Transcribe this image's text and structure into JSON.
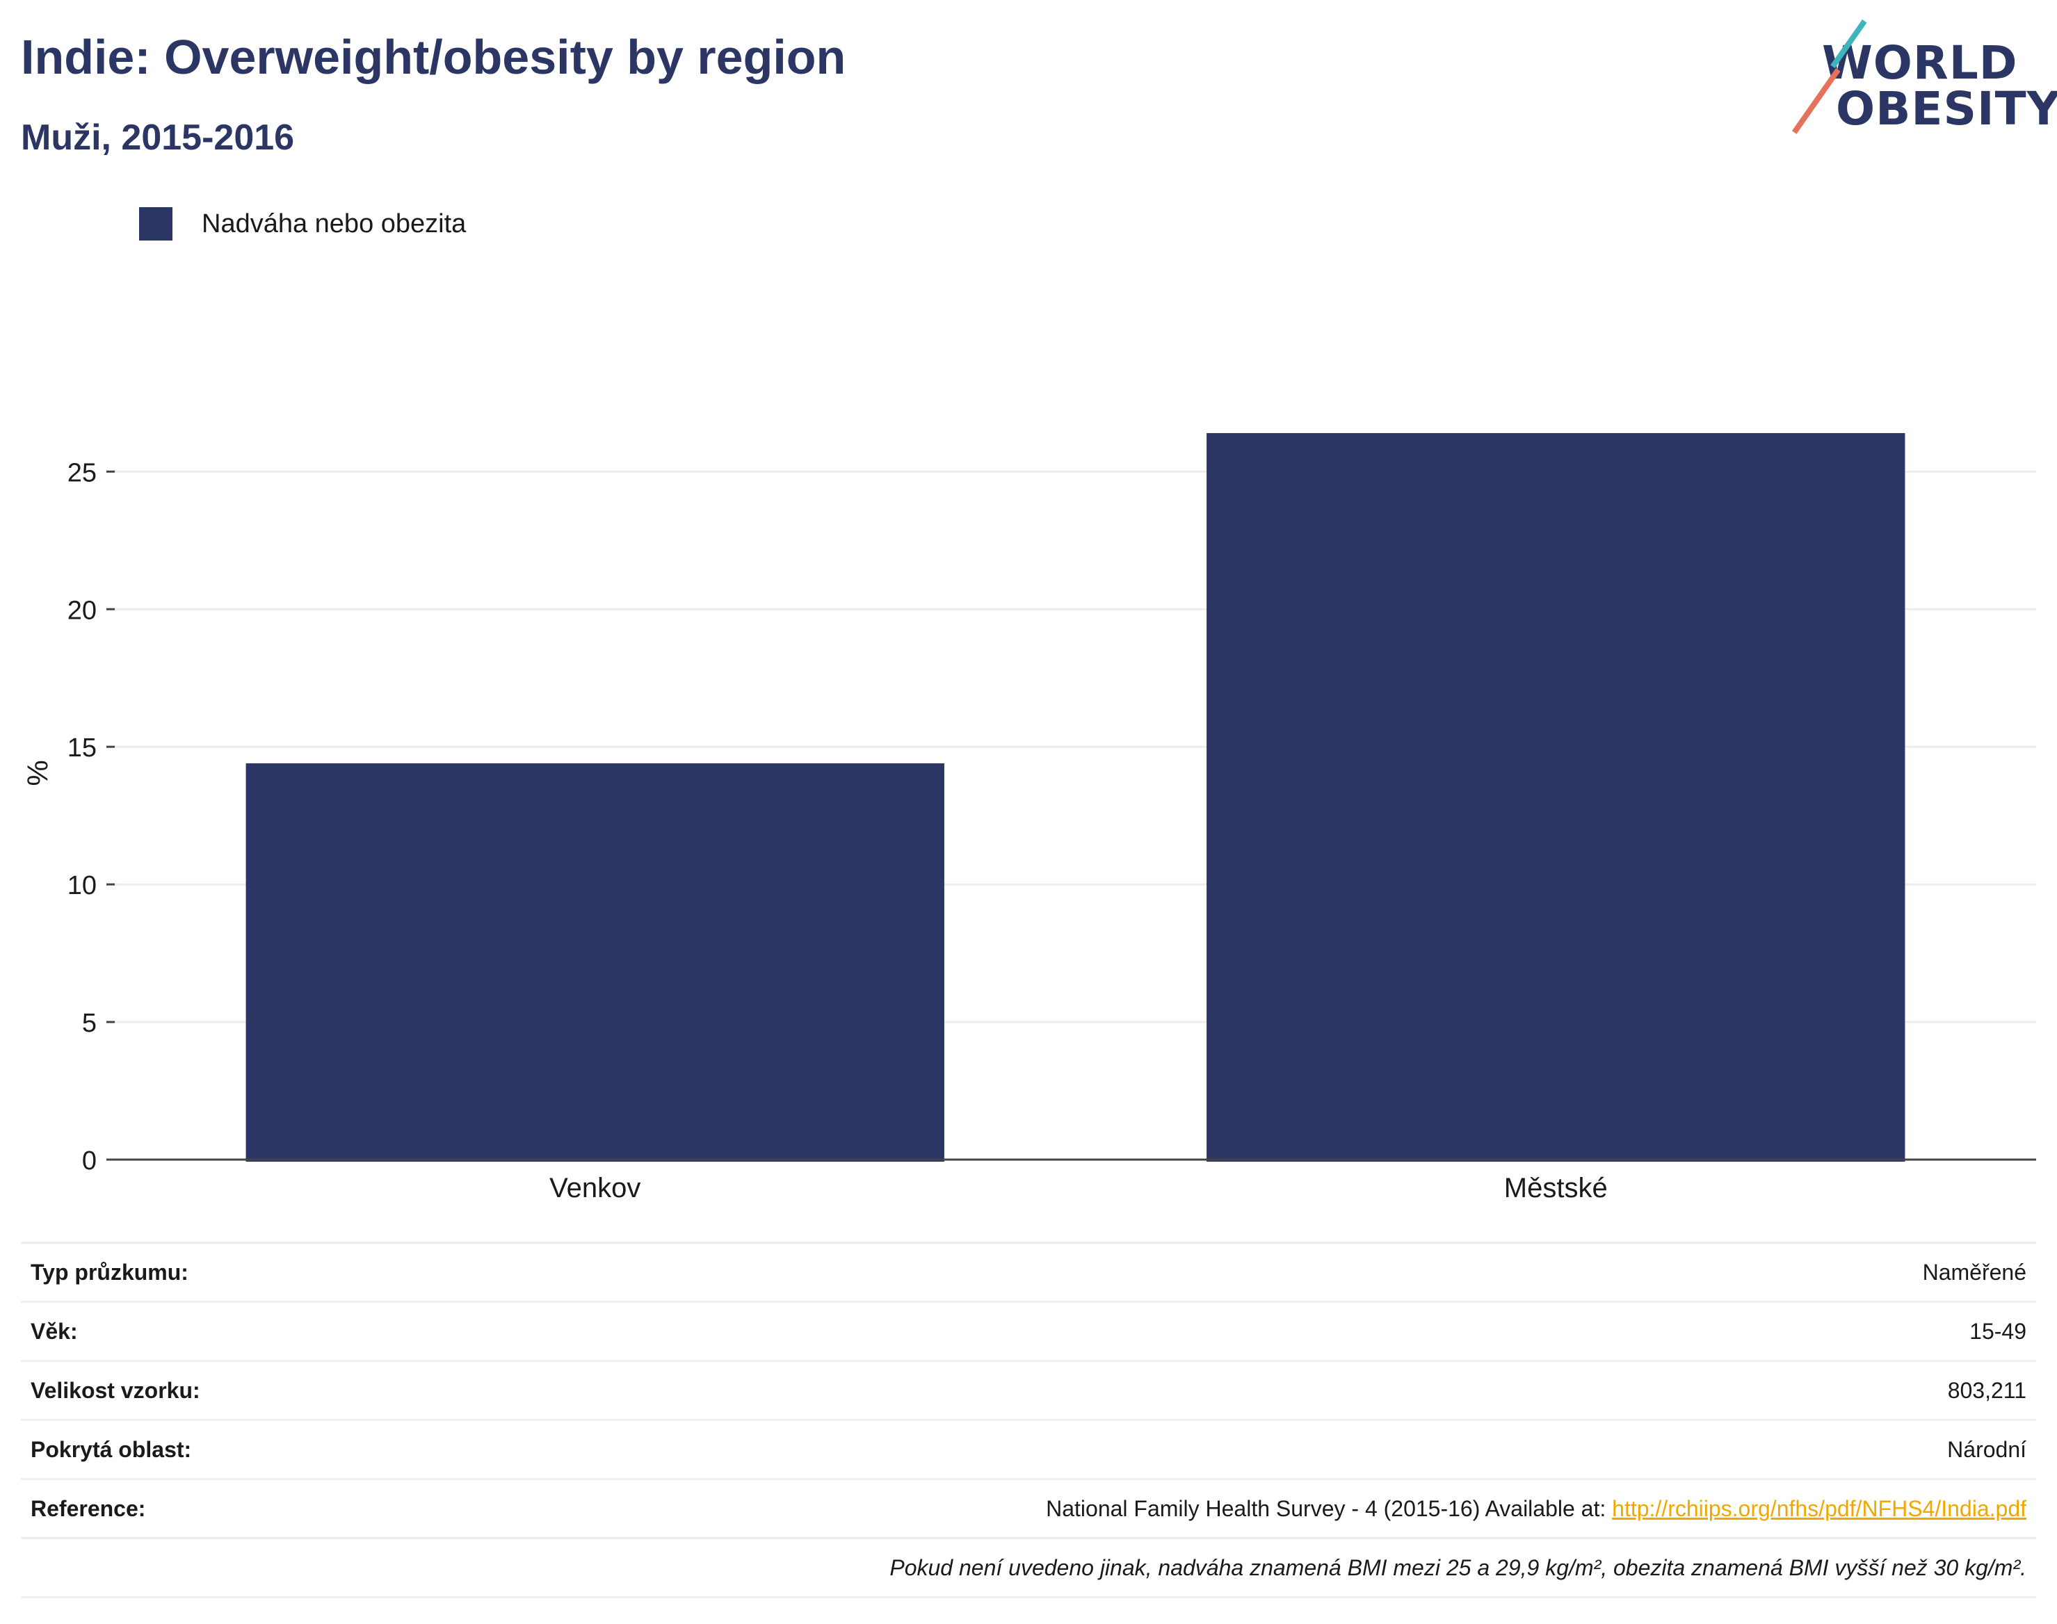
{
  "header": {
    "title": "Indie: Overweight/obesity by region",
    "subtitle": "Muži, 2015-2016"
  },
  "logo": {
    "line1": "WORLD",
    "line2": "OBESITY",
    "colors": {
      "text": "#2b3664",
      "accent_teal": "#3fb4be",
      "accent_coral": "#e4725c"
    }
  },
  "legend": {
    "label": "Nadváha nebo obezita",
    "color": "#2b3664"
  },
  "chart_data": {
    "type": "bar",
    "categories": [
      "Venkov",
      "Městské"
    ],
    "series": [
      {
        "name": "Nadváha nebo obezita",
        "values": [
          14.4,
          26.4
        ],
        "color": "#2b3664"
      }
    ],
    "title": "Indie: Overweight/obesity by region",
    "subtitle": "Muži, 2015-2016",
    "xlabel": "",
    "ylabel": "%",
    "ylim": [
      0,
      29
    ],
    "yticks": [
      0,
      5,
      10,
      15,
      20,
      25
    ],
    "grid": true,
    "legend_position": "top-left"
  },
  "info": {
    "survey_type": {
      "label": "Typ průzkumu:",
      "value": "Naměřené"
    },
    "age": {
      "label": "Věk:",
      "value": "15-49"
    },
    "sample_size": {
      "label": "Velikost vzorku:",
      "value": "803,211"
    },
    "coverage": {
      "label": "Pokrytá oblast:",
      "value": "Národní"
    },
    "reference": {
      "label": "Reference:",
      "text": "National Family Health Survey - 4 (2015-16) Available at: ",
      "link": "http://rchiips.org/nfhs/pdf/NFHS4/India.pdf"
    },
    "footnote": "Pokud není uvedeno jinak, nadváha znamená BMI mezi 25 a 29,9 kg/m², obezita znamená BMI vyšší než 30 kg/m²."
  }
}
